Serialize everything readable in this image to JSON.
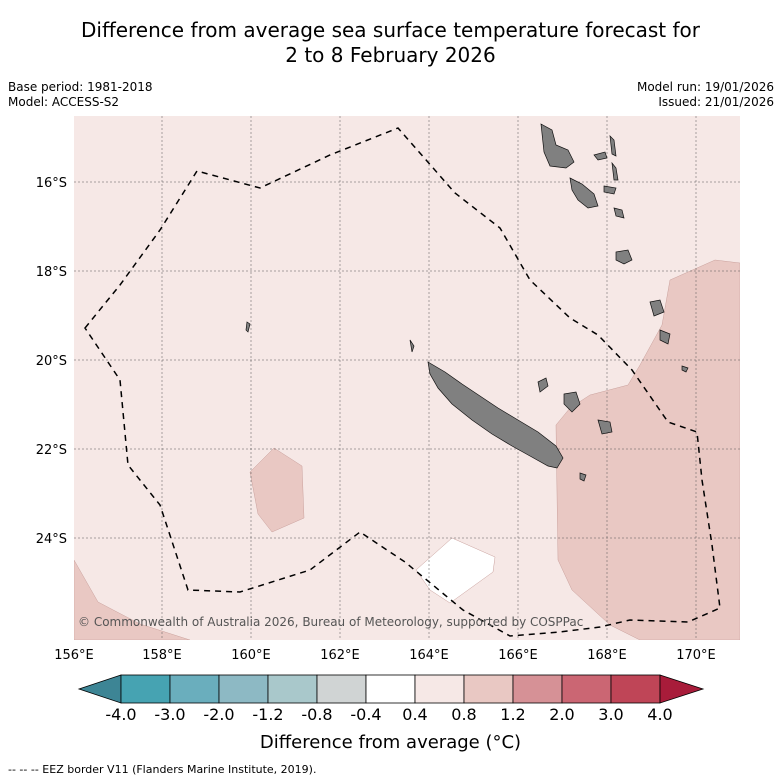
{
  "title_line1": "Difference from average sea surface temperature forecast for",
  "title_line2": "2 to 8 February 2026",
  "base_period": "Base period: 1981-2018",
  "model": "Model: ACCESS-S2",
  "model_run": "Model run: 19/01/2026",
  "issued": "Issued: 21/01/2026",
  "lat_labels": [
    "16°S",
    "18°S",
    "20°S",
    "22°S",
    "24°S"
  ],
  "lon_labels": [
    "156°E",
    "158°E",
    "160°E",
    "162°E",
    "164°E",
    "166°E",
    "168°E",
    "170°E"
  ],
  "copyright": "© Commonwealth of Australia 2026, Bureau of Meteorology, supported by COSPPac",
  "colorbar": {
    "ticks": [
      "-4.0",
      "-3.0",
      "-2.0",
      "-1.2",
      "-0.8",
      "-0.4",
      "0.4",
      "0.8",
      "1.2",
      "2.0",
      "3.0",
      "4.0"
    ],
    "colors": [
      "#3d8595",
      "#46a3b2",
      "#6aaebd",
      "#8db9c4",
      "#a9c8cb",
      "#d0d4d4",
      "#ffffff",
      "#f6e8e6",
      "#e9c8c3",
      "#d69196",
      "#cb6673",
      "#bf4557",
      "#a81c3a"
    ],
    "title": "Difference from average (°C)"
  },
  "footnote": "--  --  -- EEZ border V11 (Flanders Marine Institute, 2019)."
}
